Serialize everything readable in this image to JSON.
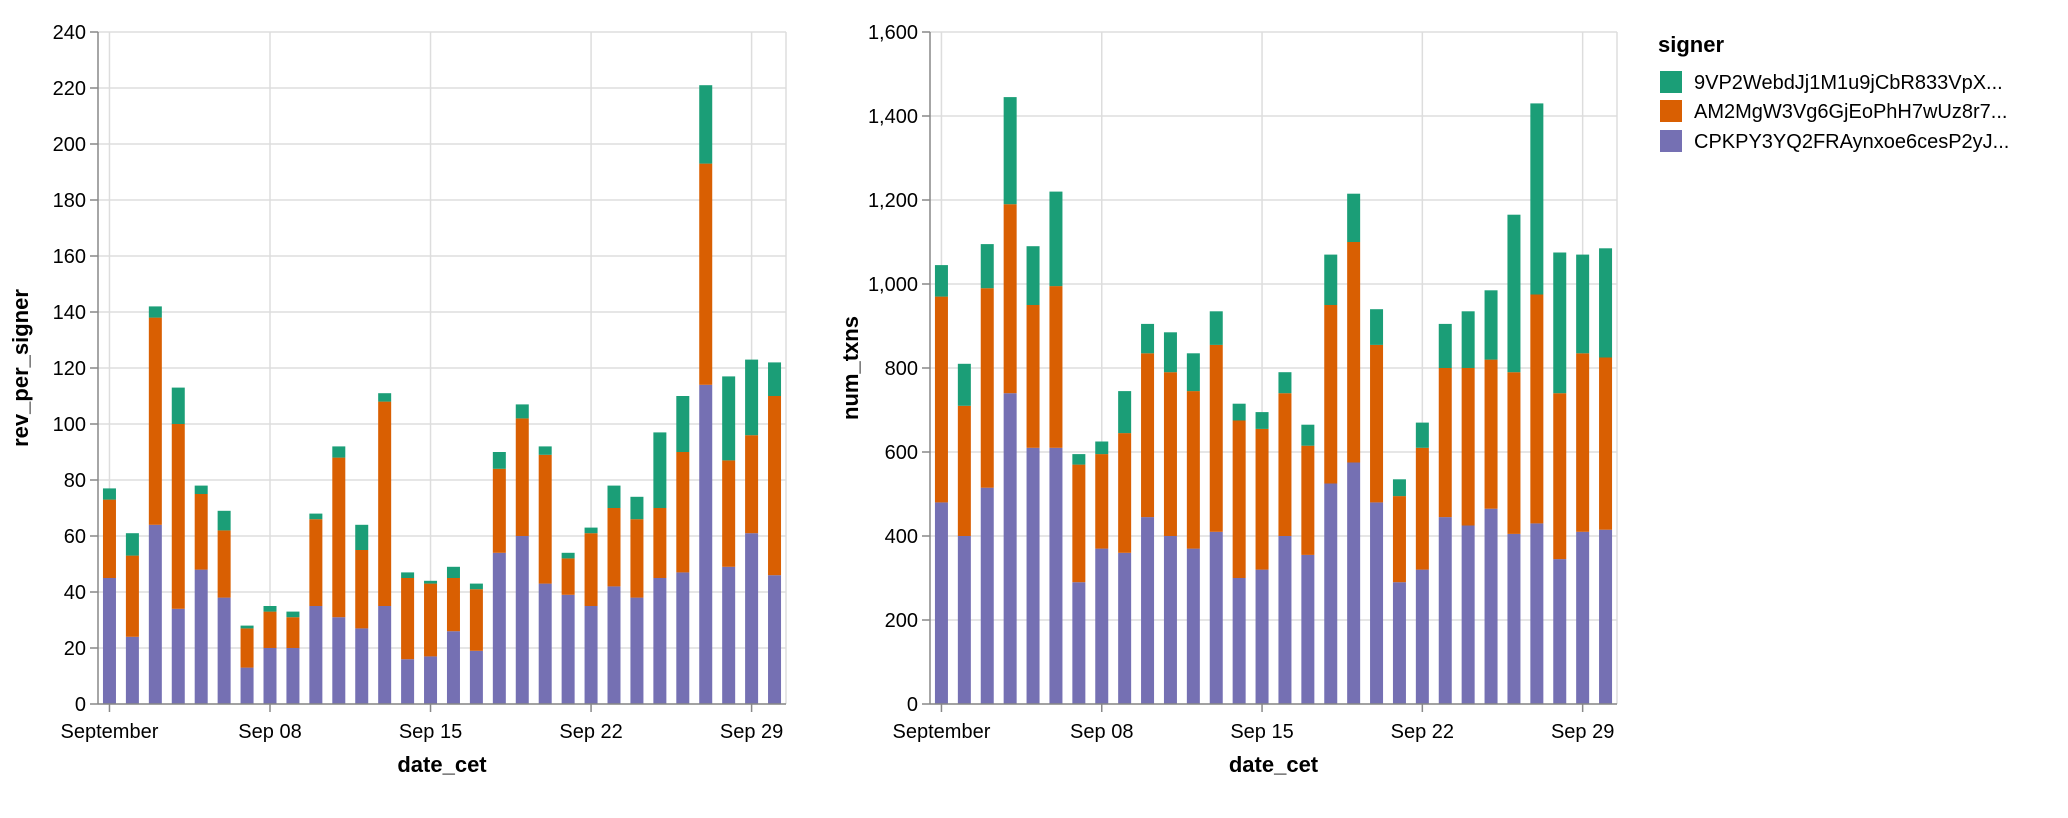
{
  "legend": {
    "title": "signer",
    "position": "top-right",
    "entries": [
      {
        "label": "9VP2WebdJj1M1u9jCbR833VpX...",
        "color": "#1b9e77"
      },
      {
        "label": "AM2MgW3Vg6GjEoPhH7wUz8r7...",
        "color": "#d95f02"
      },
      {
        "label": "CPKPY3YQ2FRAynxoe6cesP2yJ...",
        "color": "#7570b3"
      }
    ]
  },
  "chart_data": [
    {
      "type": "bar",
      "stacked": true,
      "xlabel": "date_cet",
      "ylabel": "rev_per_signer",
      "ylim": [
        0,
        240
      ],
      "yticks": [
        "0",
        "20",
        "40",
        "60",
        "80",
        "100",
        "120",
        "140",
        "160",
        "180",
        "200",
        "220",
        "240"
      ],
      "ytick_values": [
        0,
        20,
        40,
        60,
        80,
        100,
        120,
        140,
        160,
        180,
        200,
        220,
        240
      ],
      "xticks": [
        {
          "day": 1,
          "label": "September"
        },
        {
          "day": 8,
          "label": "Sep 08"
        },
        {
          "day": 15,
          "label": "Sep 15"
        },
        {
          "day": 22,
          "label": "Sep 22"
        },
        {
          "day": 29,
          "label": "Sep 29"
        }
      ],
      "grid": true,
      "x": [
        "2023-09-01",
        "2023-09-02",
        "2023-09-03",
        "2023-09-04",
        "2023-09-05",
        "2023-09-06",
        "2023-09-07",
        "2023-09-08",
        "2023-09-09",
        "2023-09-10",
        "2023-09-11",
        "2023-09-12",
        "2023-09-13",
        "2023-09-14",
        "2023-09-15",
        "2023-09-16",
        "2023-09-17",
        "2023-09-18",
        "2023-09-19",
        "2023-09-20",
        "2023-09-21",
        "2023-09-22",
        "2023-09-23",
        "2023-09-24",
        "2023-09-25",
        "2023-09-26",
        "2023-09-27",
        "2023-09-28",
        "2023-09-29",
        "2023-09-30"
      ],
      "series": [
        {
          "name": "CPKPY3YQ2FRAynxoe6cesP2yJ...",
          "values": [
            45,
            24,
            64,
            34,
            48,
            38,
            13,
            20,
            20,
            35,
            31,
            27,
            35,
            16,
            17,
            26,
            19,
            54,
            60,
            43,
            39,
            35,
            42,
            38,
            45,
            47,
            114,
            49,
            61,
            46
          ]
        },
        {
          "name": "AM2MgW3Vg6GjEoPhH7wUz8r7...",
          "values": [
            28,
            29,
            74,
            66,
            27,
            24,
            14,
            13,
            11,
            31,
            57,
            28,
            73,
            29,
            26,
            19,
            22,
            30,
            42,
            46,
            13,
            26,
            28,
            28,
            25,
            43,
            79,
            38,
            35,
            64
          ]
        },
        {
          "name": "9VP2WebdJj1M1u9jCbR833VpX...",
          "values": [
            4,
            8,
            4,
            13,
            3,
            7,
            1,
            2,
            2,
            2,
            4,
            9,
            3,
            2,
            1,
            4,
            2,
            6,
            5,
            3,
            2,
            2,
            8,
            8,
            27,
            20,
            28,
            30,
            27,
            12
          ]
        }
      ]
    },
    {
      "type": "bar",
      "stacked": true,
      "xlabel": "date_cet",
      "ylabel": "num_txns",
      "ylim": [
        0,
        1600
      ],
      "yticks": [
        "0",
        "200",
        "400",
        "600",
        "800",
        "1,000",
        "1,200",
        "1,400",
        "1,600"
      ],
      "ytick_values": [
        0,
        200,
        400,
        600,
        800,
        1000,
        1200,
        1400,
        1600
      ],
      "xticks": [
        {
          "day": 1,
          "label": "September"
        },
        {
          "day": 8,
          "label": "Sep 08"
        },
        {
          "day": 15,
          "label": "Sep 15"
        },
        {
          "day": 22,
          "label": "Sep 22"
        },
        {
          "day": 29,
          "label": "Sep 29"
        }
      ],
      "grid": true,
      "x": [
        "2023-09-01",
        "2023-09-02",
        "2023-09-03",
        "2023-09-04",
        "2023-09-05",
        "2023-09-06",
        "2023-09-07",
        "2023-09-08",
        "2023-09-09",
        "2023-09-10",
        "2023-09-11",
        "2023-09-12",
        "2023-09-13",
        "2023-09-14",
        "2023-09-15",
        "2023-09-16",
        "2023-09-17",
        "2023-09-18",
        "2023-09-19",
        "2023-09-20",
        "2023-09-21",
        "2023-09-22",
        "2023-09-23",
        "2023-09-24",
        "2023-09-25",
        "2023-09-26",
        "2023-09-27",
        "2023-09-28",
        "2023-09-29",
        "2023-09-30"
      ],
      "series": [
        {
          "name": "CPKPY3YQ2FRAynxoe6cesP2yJ...",
          "values": [
            480,
            400,
            515,
            740,
            610,
            610,
            290,
            370,
            360,
            445,
            400,
            370,
            410,
            300,
            320,
            400,
            355,
            525,
            575,
            480,
            290,
            320,
            445,
            425,
            465,
            405,
            430,
            345,
            410,
            415
          ]
        },
        {
          "name": "AM2MgW3Vg6GjEoPhH7wUz8r7...",
          "values": [
            490,
            310,
            475,
            450,
            340,
            385,
            280,
            225,
            285,
            390,
            390,
            375,
            445,
            375,
            335,
            340,
            260,
            425,
            525,
            375,
            205,
            290,
            355,
            375,
            355,
            385,
            545,
            395,
            425,
            410
          ]
        },
        {
          "name": "9VP2WebdJj1M1u9jCbR833VpX...",
          "values": [
            75,
            100,
            105,
            255,
            140,
            225,
            25,
            30,
            100,
            70,
            95,
            90,
            80,
            40,
            40,
            50,
            50,
            120,
            115,
            85,
            40,
            60,
            105,
            135,
            165,
            375,
            455,
            335,
            235,
            260
          ]
        }
      ]
    }
  ]
}
